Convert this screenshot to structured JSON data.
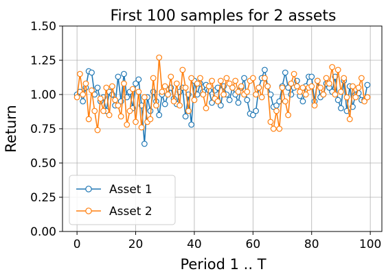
{
  "chart_data": {
    "type": "line",
    "title": "First 100 samples for 2 assets",
    "xlabel": "Period 1 .. T",
    "ylabel": "Return",
    "xlim": [
      -4.95,
      103.95
    ],
    "ylim": [
      0.0,
      1.5
    ],
    "xticks": [
      0,
      20,
      40,
      60,
      80,
      100
    ],
    "xtick_labels": [
      "0",
      "20",
      "40",
      "60",
      "80",
      "100"
    ],
    "yticks": [
      0.0,
      0.25,
      0.5,
      0.75,
      1.0,
      1.25,
      1.5
    ],
    "ytick_labels": [
      "0.00",
      "0.25",
      "0.50",
      "0.75",
      "1.00",
      "1.25",
      "1.50"
    ],
    "grid": true,
    "legend_position": "lower-left",
    "marker": "open-circle",
    "x": [
      0,
      1,
      2,
      3,
      4,
      5,
      6,
      7,
      8,
      9,
      10,
      11,
      12,
      13,
      14,
      15,
      16,
      17,
      18,
      19,
      20,
      21,
      22,
      23,
      24,
      25,
      26,
      27,
      28,
      29,
      30,
      31,
      32,
      33,
      34,
      35,
      36,
      37,
      38,
      39,
      40,
      41,
      42,
      43,
      44,
      45,
      46,
      47,
      48,
      49,
      50,
      51,
      52,
      53,
      54,
      55,
      56,
      57,
      58,
      59,
      60,
      61,
      62,
      63,
      64,
      65,
      66,
      67,
      68,
      69,
      70,
      71,
      72,
      73,
      74,
      75,
      76,
      77,
      78,
      79,
      80,
      81,
      82,
      83,
      84,
      85,
      86,
      87,
      88,
      89,
      90,
      91,
      92,
      93,
      94,
      95,
      96,
      97,
      98,
      99
    ],
    "series": [
      {
        "name": "Asset 1",
        "color": "#1f77b4",
        "values": [
          1.0,
          1.02,
          0.95,
          1.05,
          1.17,
          1.16,
          1.0,
          1.05,
          0.95,
          0.98,
          0.88,
          1.02,
          1.0,
          0.92,
          1.13,
          0.95,
          1.15,
          0.98,
          1.02,
          0.9,
          1.08,
          1.11,
          0.92,
          0.64,
          0.98,
          0.88,
          1.02,
          0.95,
          0.85,
          1.0,
          0.93,
          1.0,
          1.05,
          0.97,
          0.93,
          1.02,
          1.05,
          0.84,
          1.0,
          0.78,
          1.1,
          1.0,
          1.08,
          1.02,
          1.07,
          1.03,
          0.94,
          1.03,
          1.05,
          0.92,
          1.06,
          1.0,
          0.96,
          1.05,
          1.0,
          0.94,
          1.05,
          1.12,
          0.96,
          0.86,
          0.85,
          0.88,
          1.05,
          1.12,
          1.18,
          1.06,
          1.0,
          0.91,
          0.92,
          0.95,
          1.06,
          1.16,
          1.05,
          1.0,
          1.05,
          1.1,
          0.99,
          0.95,
          1.06,
          1.13,
          1.13,
          0.95,
          1.1,
          0.98,
          1.0,
          1.08,
          1.05,
          1.02,
          1.13,
          0.96,
          0.9,
          1.1,
          0.88,
          1.06,
          0.91,
          1.0,
          1.01,
          0.96,
          0.96,
          1.07
        ]
      },
      {
        "name": "Asset 2",
        "color": "#ff7f0e",
        "values": [
          0.98,
          1.15,
          1.0,
          1.08,
          0.82,
          1.03,
          0.88,
          0.74,
          0.97,
          0.88,
          1.05,
          0.85,
          1.06,
          0.96,
          0.92,
          0.84,
          1.08,
          0.78,
          0.88,
          1.04,
          0.8,
          1.02,
          0.76,
          0.98,
          0.8,
          0.82,
          1.12,
          0.92,
          1.27,
          1.02,
          1.06,
          1.0,
          1.13,
          0.95,
          1.08,
          0.92,
          1.18,
          1.05,
          0.88,
          1.12,
          0.96,
          1.08,
          1.12,
          1.0,
          0.9,
          1.06,
          1.1,
          0.97,
          0.95,
          1.1,
          1.0,
          1.12,
          1.08,
          1.05,
          1.1,
          1.02,
          1.06,
          1.0,
          1.02,
          1.1,
          1.12,
          1.0,
          1.05,
          0.98,
          1.12,
          1.06,
          0.8,
          0.75,
          0.88,
          0.75,
          1.05,
          0.95,
          0.85,
          1.08,
          1.15,
          1.06,
          1.02,
          1.05,
          1.0,
          1.05,
          1.06,
          0.92,
          1.1,
          1.05,
          1.0,
          1.12,
          1.08,
          1.2,
          1.0,
          1.18,
          1.02,
          1.12,
          0.98,
          0.82,
          1.06,
          0.98,
          1.05,
          1.12,
          0.95,
          0.98
        ]
      }
    ]
  }
}
